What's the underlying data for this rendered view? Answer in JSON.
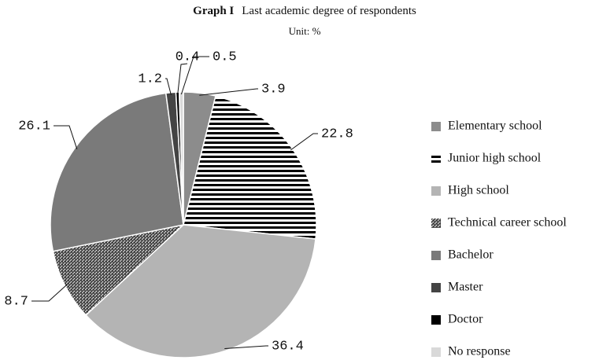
{
  "chart_data": {
    "type": "pie",
    "title_prefix": "Graph I",
    "title": "Last academic degree of respondents",
    "subtitle": "Unit: %",
    "slices": [
      {
        "name": "Elementary school",
        "value": 3.9,
        "color": "#8c8c8c"
      },
      {
        "name": "Junior high school",
        "value": 22.8,
        "color": "#000000",
        "pattern": "horizontal-stripes"
      },
      {
        "name": "High school",
        "value": 36.4,
        "color": "#b4b4b4"
      },
      {
        "name": "Technical career school",
        "value": 8.7,
        "color": "#333333",
        "pattern": "speckle"
      },
      {
        "name": "Bachelor",
        "value": 26.1,
        "color": "#7a7a7a"
      },
      {
        "name": "Master",
        "value": 1.2,
        "color": "#444444"
      },
      {
        "name": "Doctor",
        "value": 0.4,
        "color": "#000000"
      },
      {
        "name": "No response",
        "value": 0.5,
        "color": "#d9d9d9"
      }
    ],
    "legend": "right"
  }
}
